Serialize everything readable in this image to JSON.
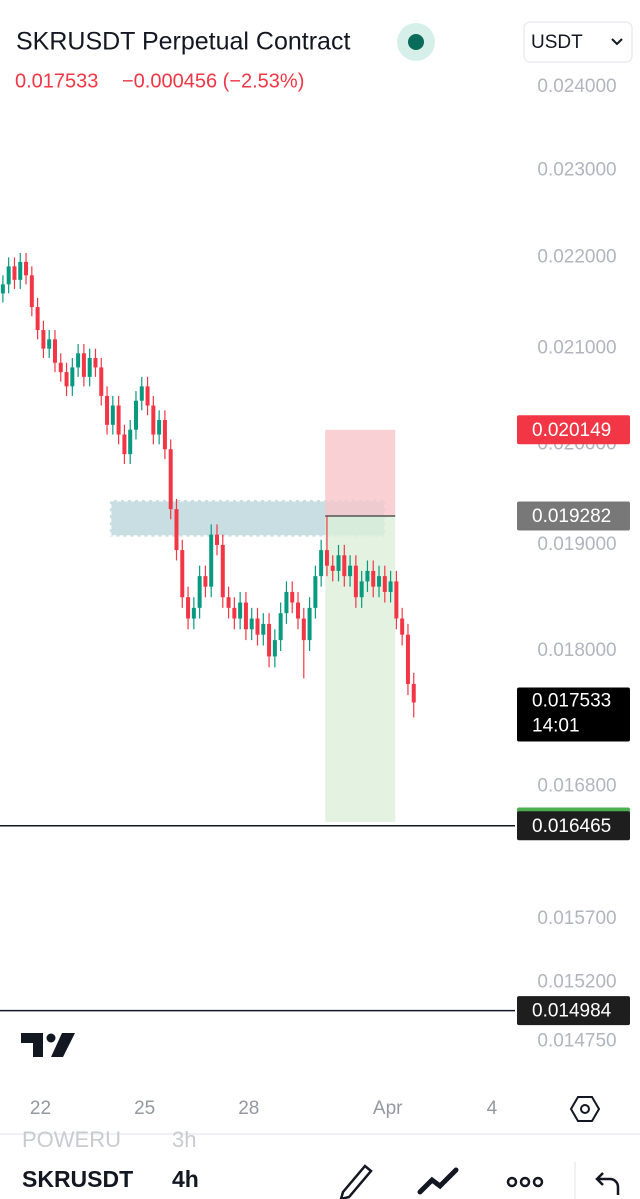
{
  "chart_data": {
    "type": "candlestick",
    "title": "SKRUSDT Perpetual Contract",
    "price": 0.017533,
    "change": "−0.000456 (−2.53%)",
    "currency": "USDT",
    "log_scale": true,
    "ylim": [
      0.0145,
      0.02433
    ],
    "yticks": [
      {
        "value": 0.024,
        "label": "0.024000"
      },
      {
        "value": 0.023,
        "label": "0.023000"
      },
      {
        "value": 0.022,
        "label": "0.022000"
      },
      {
        "value": 0.021,
        "label": "0.021000"
      },
      {
        "value": 0.02,
        "label": "0.020000"
      },
      {
        "value": 0.019,
        "label": "0.019000"
      },
      {
        "value": 0.018,
        "label": "0.018000"
      },
      {
        "value": 0.0168,
        "label": "0.016800"
      },
      {
        "value": 0.0157,
        "label": "0.015700"
      },
      {
        "value": 0.0152,
        "label": "0.015200"
      },
      {
        "value": 0.01475,
        "label": "0.014750"
      }
    ],
    "xlim": [
      -0.5,
      88.5
    ],
    "xticks": [
      {
        "value": 6.5,
        "label": "22"
      },
      {
        "value": 24.5,
        "label": "25"
      },
      {
        "value": 42.5,
        "label": "28"
      },
      {
        "value": 66.5,
        "label": "Apr"
      },
      {
        "value": 84.5,
        "label": "4"
      }
    ],
    "up_color": "#089981",
    "down_color": "#f23645",
    "open": [
      0.0216,
      0.0217,
      0.0219,
      0.02175,
      0.02195,
      0.0218,
      0.02145,
      0.0212,
      0.021,
      0.0211,
      0.02085,
      0.02075,
      0.0206,
      0.0208,
      0.02095,
      0.0207,
      0.0209,
      0.0208,
      0.0205,
      0.0202,
      0.0204,
      0.0201,
      0.0199,
      0.02015,
      0.02045,
      0.0206,
      0.0204,
      0.0201,
      0.02025,
      0.01995,
      0.01935,
      0.01895,
      0.0185,
      0.0183,
      0.0184,
      0.0187,
      0.0186,
      0.0191,
      0.019,
      0.0185,
      0.0184,
      0.0183,
      0.01845,
      0.0182,
      0.0183,
      0.01815,
      0.01825,
      0.01795,
      0.0181,
      0.01835,
      0.01855,
      0.01845,
      0.0183,
      0.0181,
      0.0184,
      0.0187,
      0.01895,
      0.0188,
      0.01875,
      0.0189,
      0.0187,
      0.0188,
      0.0185,
      0.01865,
      0.01875,
      0.0186,
      0.0187,
      0.01855,
      0.01865,
      0.0183,
      0.01815,
      0.0177
    ],
    "high": [
      0.0218,
      0.022,
      0.022,
      0.02205,
      0.02205,
      0.0219,
      0.02155,
      0.0213,
      0.0212,
      0.0212,
      0.02095,
      0.02085,
      0.0209,
      0.02105,
      0.02105,
      0.021,
      0.021,
      0.0209,
      0.0206,
      0.0205,
      0.0205,
      0.0202,
      0.02025,
      0.02055,
      0.0207,
      0.0207,
      0.0205,
      0.02035,
      0.02035,
      0.02005,
      0.01945,
      0.01905,
      0.0186,
      0.0185,
      0.0188,
      0.0188,
      0.0192,
      0.0192,
      0.0191,
      0.0186,
      0.0185,
      0.01855,
      0.01855,
      0.0184,
      0.0184,
      0.01835,
      0.01835,
      0.0182,
      0.01845,
      0.01865,
      0.01865,
      0.01855,
      0.0184,
      0.0185,
      0.0188,
      0.01905,
      0.01928,
      0.0189,
      0.019,
      0.019,
      0.0189,
      0.0189,
      0.01875,
      0.01885,
      0.01885,
      0.0188,
      0.0188,
      0.01875,
      0.01875,
      0.0184,
      0.01825,
      0.0178
    ],
    "low": [
      0.0215,
      0.0216,
      0.02165,
      0.02165,
      0.0217,
      0.02135,
      0.0211,
      0.0209,
      0.0209,
      0.02075,
      0.02065,
      0.0205,
      0.0205,
      0.0207,
      0.0206,
      0.0206,
      0.0207,
      0.0204,
      0.0201,
      0.0201,
      0.02,
      0.0198,
      0.0198,
      0.02005,
      0.02035,
      0.0203,
      0.02,
      0.02,
      0.01985,
      0.01925,
      0.01885,
      0.0184,
      0.0182,
      0.0182,
      0.0183,
      0.0185,
      0.0185,
      0.0189,
      0.0184,
      0.0183,
      0.0182,
      0.0182,
      0.0181,
      0.0181,
      0.01805,
      0.01805,
      0.01785,
      0.01785,
      0.018,
      0.01825,
      0.01835,
      0.0182,
      0.01775,
      0.018,
      0.0183,
      0.0186,
      0.0187,
      0.01865,
      0.01865,
      0.0186,
      0.0186,
      0.0184,
      0.0184,
      0.01855,
      0.0185,
      0.0185,
      0.01845,
      0.01845,
      0.0182,
      0.01805,
      0.0176,
      0.0174
    ],
    "close": [
      0.0217,
      0.0219,
      0.02175,
      0.02195,
      0.0218,
      0.02145,
      0.0212,
      0.021,
      0.0211,
      0.02085,
      0.02075,
      0.0206,
      0.0208,
      0.02095,
      0.0207,
      0.0209,
      0.0208,
      0.0205,
      0.0202,
      0.0204,
      0.0201,
      0.0199,
      0.02015,
      0.02045,
      0.0206,
      0.0204,
      0.0201,
      0.02025,
      0.01995,
      0.01935,
      0.01895,
      0.0185,
      0.0183,
      0.0184,
      0.0187,
      0.0186,
      0.0191,
      0.019,
      0.0185,
      0.0184,
      0.0183,
      0.01845,
      0.0182,
      0.0183,
      0.01815,
      0.01825,
      0.01795,
      0.0181,
      0.01835,
      0.01855,
      0.01845,
      0.0183,
      0.0181,
      0.0184,
      0.0187,
      0.01895,
      0.0188,
      0.01875,
      0.0189,
      0.0187,
      0.0188,
      0.0185,
      0.01865,
      0.01875,
      0.0186,
      0.0187,
      0.01855,
      0.01865,
      0.0183,
      0.01815,
      0.0177,
      0.017533
    ],
    "zone": {
      "top": 0.01944,
      "bottom": 0.01908,
      "x": [
        18.5,
        66.1
      ],
      "color": "#b7d3d8"
    },
    "position": {
      "stop": 0.020149,
      "entry": 0.019282,
      "target": 0.016497,
      "x": [
        55.7,
        67.8
      ],
      "stop_color": "#f7c6ca",
      "target_color": "#dcefd9"
    },
    "horizontal_lines": [
      0.016465,
      0.014984
    ],
    "price_lines": [
      {
        "value": 0.020149,
        "color": "#f23645"
      },
      {
        "value": 0.019282,
        "color": "#787878"
      },
      {
        "value": 0.017533,
        "countdown": "14:01",
        "color": "#000000"
      },
      {
        "value": 0.016497,
        "color": "#4caf50"
      },
      {
        "value": 0.016465,
        "color": "#1e1e1e"
      },
      {
        "value": 0.014984,
        "color": "#1e1e1e"
      }
    ]
  },
  "toolbar": {
    "previous_symbol": "POWERU",
    "previous_interval": "3h",
    "symbol": "SKRUSDT",
    "interval": "4h"
  }
}
